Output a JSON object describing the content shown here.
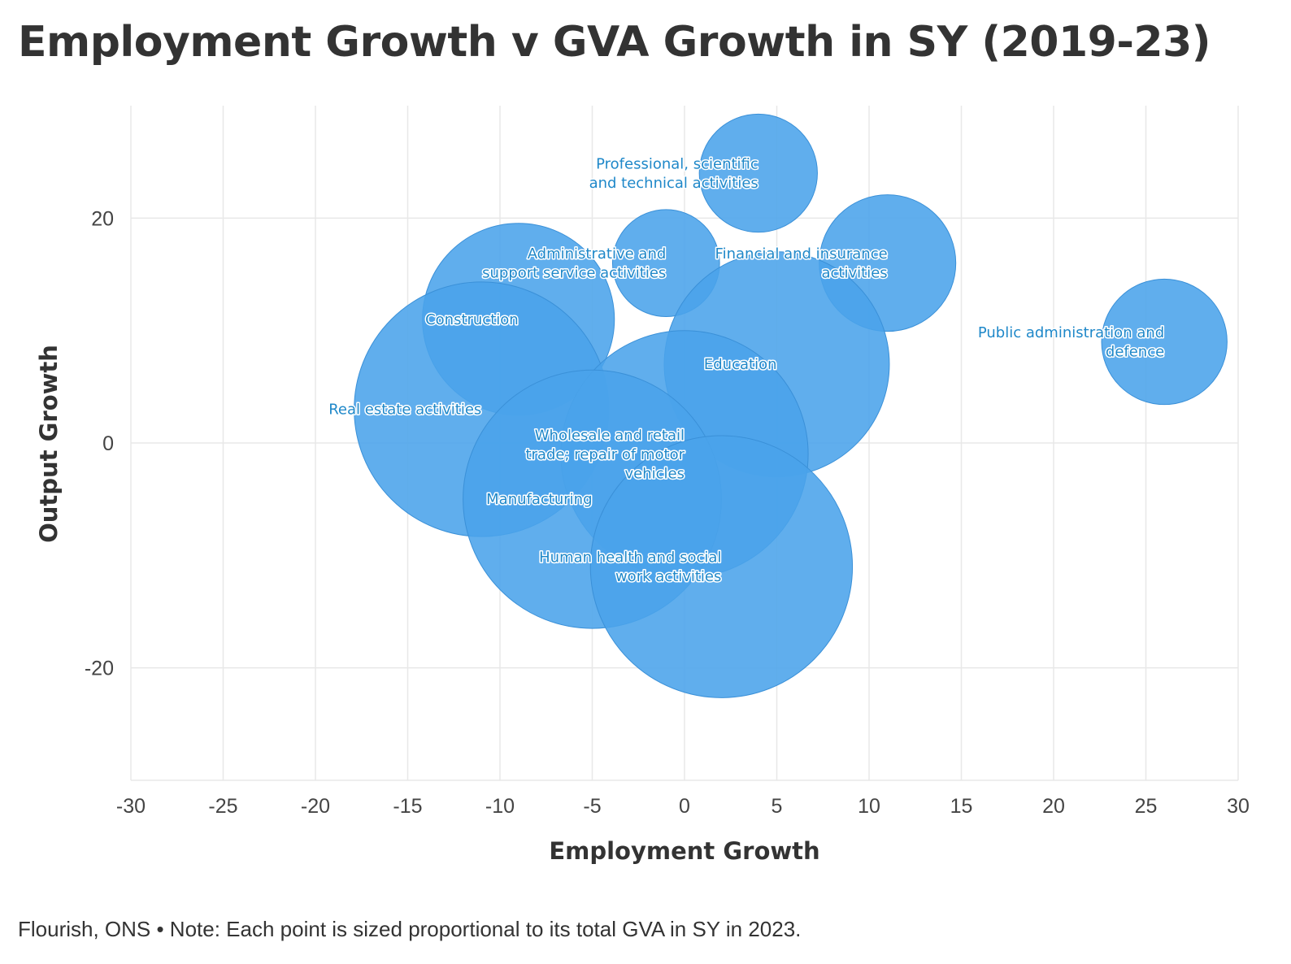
{
  "chart_data": {
    "type": "scatter",
    "title": "Employment Growth v GVA Growth in SY (2019-23)",
    "xlabel": "Employment Growth",
    "ylabel": "Output Growth",
    "xlim": [
      -30,
      30
    ],
    "ylim": [
      -30,
      30
    ],
    "x_ticks": [
      -30,
      -25,
      -20,
      -15,
      -10,
      -5,
      0,
      5,
      10,
      15,
      20,
      25,
      30
    ],
    "y_ticks": [
      -20,
      0,
      20
    ],
    "bubble_color": "#4aa3ea",
    "label_color": "#1f88c9",
    "points": [
      {
        "name": "Professional, scientific and technical activities",
        "label_lines": [
          "Professional, scientific",
          "and technical activities"
        ],
        "x": 4,
        "y": 24,
        "size": 3.2
      },
      {
        "name": "Administrative and support service activities",
        "label_lines": [
          "Administrative and",
          "support service activities"
        ],
        "x": -1,
        "y": 16,
        "size": 2.9
      },
      {
        "name": "Financial and insurance activities",
        "label_lines": [
          "Financial and insurance",
          "activities"
        ],
        "x": 11,
        "y": 16,
        "size": 3.7
      },
      {
        "name": "Construction",
        "label_lines": [
          "Construction"
        ],
        "x": -9,
        "y": 11,
        "size": 5.2
      },
      {
        "name": "Public administration and defence",
        "label_lines": [
          "Public administration and",
          "defence"
        ],
        "x": 26,
        "y": 9,
        "size": 3.4
      },
      {
        "name": "Education",
        "label_lines": [
          "Education"
        ],
        "x": 5,
        "y": 7,
        "size": 6.1
      },
      {
        "name": "Real estate activities",
        "label_lines": [
          "Real estate activities"
        ],
        "x": -11,
        "y": 3,
        "size": 6.9
      },
      {
        "name": "Wholesale and retail trade; repair of motor vehicles",
        "label_lines": [
          "Wholesale and retail",
          "trade; repair of motor",
          "vehicles"
        ],
        "x": 0,
        "y": -1,
        "size": 6.7
      },
      {
        "name": "Manufacturing",
        "label_lines": [
          "Manufacturing"
        ],
        "x": -5,
        "y": -5,
        "size": 7.0
      },
      {
        "name": "Human health and social work activities",
        "label_lines": [
          "Human health and social",
          "work activities"
        ],
        "x": 2,
        "y": -11,
        "size": 7.1
      }
    ]
  },
  "footer": {
    "note": "Flourish, ONS • Note: Each point is sized proportional to its total GVA in SY in 2023."
  }
}
